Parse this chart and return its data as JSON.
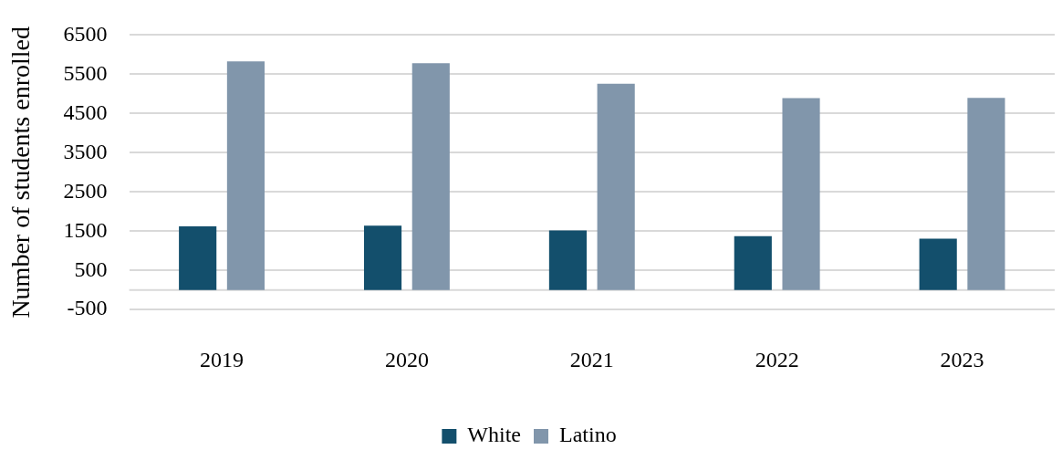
{
  "chart_data": {
    "type": "bar",
    "ylabel": "Number of students enrolled",
    "categories": [
      "2019",
      "2020",
      "2021",
      "2022",
      "2023"
    ],
    "series": [
      {
        "name": "White",
        "color": "#134f6c",
        "values": [
          1620,
          1640,
          1520,
          1370,
          1310
        ]
      },
      {
        "name": "Latino",
        "color": "#8196ab",
        "values": [
          5830,
          5780,
          5260,
          4890,
          4900
        ]
      }
    ],
    "ylim": [
      -500,
      6500
    ],
    "yticks": [
      -500,
      500,
      1500,
      2500,
      3500,
      4500,
      5500,
      6500
    ],
    "grid": "y",
    "legend": "bottom"
  }
}
